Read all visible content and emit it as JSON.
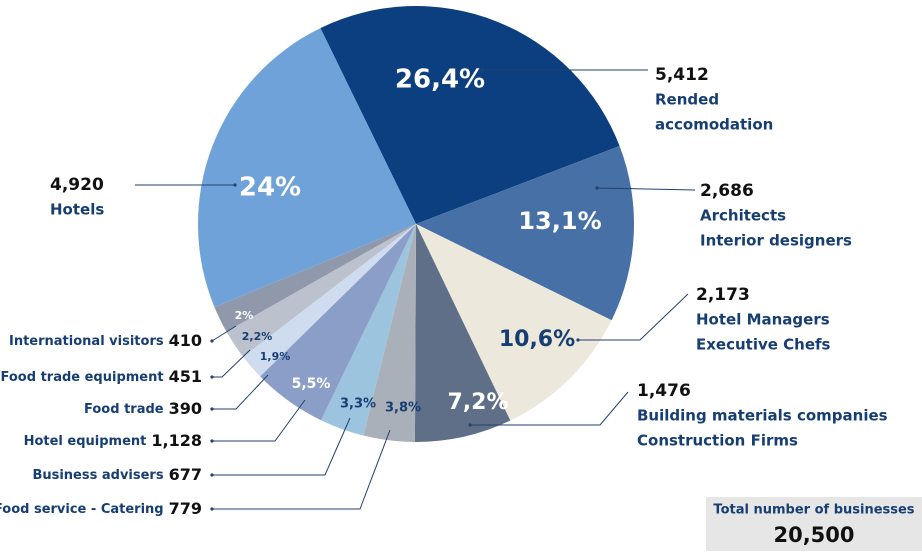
{
  "chart_data": {
    "type": "pie",
    "categories": [
      [
        "Rended",
        "accomodation"
      ],
      [
        "Architects",
        "Interior designers"
      ],
      [
        "Hotel Managers",
        "Executive Chefs"
      ],
      [
        "Building materials companies",
        "Construction Firms"
      ],
      [
        "Food service - Catering"
      ],
      [
        "Business advisers"
      ],
      [
        "Hotel equipment"
      ],
      [
        "Food trade"
      ],
      [
        "Food trade equipment"
      ],
      [
        "International visitors"
      ],
      [
        "Hotels"
      ]
    ],
    "values": [
      26.4,
      13.1,
      10.6,
      7.2,
      3.8,
      3.3,
      5.5,
      1.9,
      2.2,
      2,
      24
    ],
    "value_labels": [
      "26,4%",
      "13,1%",
      "10,6%",
      "7,2%",
      "3,8%",
      "3,3%",
      "5,5%",
      "1,9%",
      "2,2%",
      "2%",
      "24%"
    ],
    "counts": [
      {
        "value": 5412,
        "label": "5,412"
      },
      {
        "value": 2686,
        "label": "2,686"
      },
      {
        "value": 2173,
        "label": "2,173"
      },
      {
        "value": 1476,
        "label": "1,476"
      },
      {
        "value": 779,
        "label": "779"
      },
      {
        "value": 677,
        "label": "677"
      },
      {
        "value": 1128,
        "label": "1,128"
      },
      {
        "value": 390,
        "label": "390"
      },
      {
        "value": 451,
        "label": "451"
      },
      {
        "value": 410,
        "label": "410"
      },
      {
        "value": 4920,
        "label": "4,920"
      }
    ],
    "colors": [
      "#0b3f80",
      "#4771a6",
      "#ece8dc",
      "#5f6f88",
      "#aab0b9",
      "#9cc4de",
      "#8a9ec8",
      "#cfdbef",
      "#bcc2cd",
      "#9099ab",
      "#6fa2d8"
    ],
    "total": {
      "title": "Total number of businesses",
      "value": 20500,
      "label": "20,500"
    }
  }
}
